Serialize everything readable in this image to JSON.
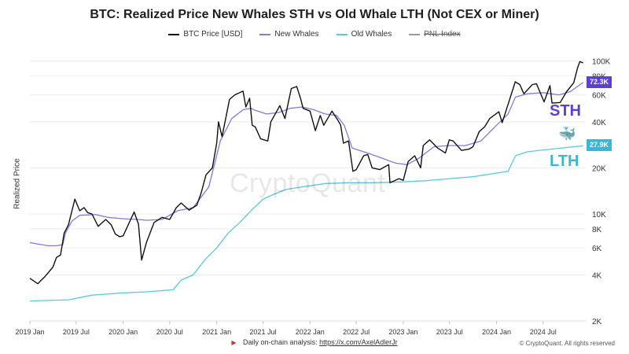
{
  "chart_data": {
    "type": "line",
    "title": "BTC: Realized Price New Whales STH vs Old Whale LTH (Not CEX or Miner)",
    "ylabel": "Realized Price",
    "yscale": "log",
    "ylim": [
      2000,
      120000
    ],
    "xlim": [
      "2019-01-01",
      "2024-12-15"
    ],
    "x_ticks": [
      {
        "date": "2019-01-01",
        "label": "2019 Jan"
      },
      {
        "date": "2019-07-01",
        "label": "2019 Jul"
      },
      {
        "date": "2020-01-01",
        "label": "2020 Jan"
      },
      {
        "date": "2020-07-01",
        "label": "2020 Jul"
      },
      {
        "date": "2021-01-01",
        "label": "2021 Jan"
      },
      {
        "date": "2021-07-01",
        "label": "2021 Jul"
      },
      {
        "date": "2022-01-01",
        "label": "2022 Jan"
      },
      {
        "date": "2022-07-01",
        "label": "2022 Jul"
      },
      {
        "date": "2023-01-01",
        "label": "2023 Jan"
      },
      {
        "date": "2023-07-01",
        "label": "2023 Jul"
      },
      {
        "date": "2024-01-01",
        "label": "2024 Jan"
      },
      {
        "date": "2024-07-01",
        "label": "2024 Jul"
      }
    ],
    "y_ticks": [
      {
        "value": 2000,
        "label": "2K"
      },
      {
        "value": 4000,
        "label": "4K"
      },
      {
        "value": 6000,
        "label": "6K"
      },
      {
        "value": 8000,
        "label": "8K"
      },
      {
        "value": 10000,
        "label": "10K"
      },
      {
        "value": 20000,
        "label": "20K"
      },
      {
        "value": 40000,
        "label": "40K"
      },
      {
        "value": 60000,
        "label": "60K"
      },
      {
        "value": 80000,
        "label": "80K"
      },
      {
        "value": 100000,
        "label": "100K"
      }
    ],
    "legend": [
      {
        "name": "BTC Price [USD]",
        "color": "#111111",
        "strike": false
      },
      {
        "name": "New Whales",
        "color": "#8877dd",
        "strike": false
      },
      {
        "name": "Old Whales",
        "color": "#5bc8dc",
        "strike": false
      },
      {
        "name": "PNL Index",
        "color": "#999999",
        "strike": true
      }
    ],
    "series": [
      {
        "name": "BTC Price [USD]",
        "color": "#111111",
        "points": [
          [
            "2019-01-01",
            3800
          ],
          [
            "2019-02-01",
            3500
          ],
          [
            "2019-02-15",
            3700
          ],
          [
            "2019-03-01",
            3900
          ],
          [
            "2019-04-01",
            4500
          ],
          [
            "2019-04-15",
            5200
          ],
          [
            "2019-05-01",
            5400
          ],
          [
            "2019-05-15",
            7500
          ],
          [
            "2019-06-01",
            8500
          ],
          [
            "2019-06-26",
            12500
          ],
          [
            "2019-07-15",
            10500
          ],
          [
            "2019-08-01",
            11000
          ],
          [
            "2019-08-15",
            10200
          ],
          [
            "2019-09-01",
            10000
          ],
          [
            "2019-09-25",
            8300
          ],
          [
            "2019-10-25",
            9200
          ],
          [
            "2019-11-15",
            8500
          ],
          [
            "2019-12-01",
            7400
          ],
          [
            "2019-12-18",
            7100
          ],
          [
            "2020-01-01",
            7200
          ],
          [
            "2020-02-13",
            10300
          ],
          [
            "2020-03-01",
            8600
          ],
          [
            "2020-03-13",
            5000
          ],
          [
            "2020-04-01",
            6500
          ],
          [
            "2020-05-01",
            8800
          ],
          [
            "2020-06-01",
            9500
          ],
          [
            "2020-07-01",
            9200
          ],
          [
            "2020-07-27",
            11000
          ],
          [
            "2020-08-15",
            11800
          ],
          [
            "2020-09-15",
            10600
          ],
          [
            "2020-10-15",
            11400
          ],
          [
            "2020-11-01",
            13700
          ],
          [
            "2020-11-20",
            18000
          ],
          [
            "2020-12-15",
            20000
          ],
          [
            "2021-01-01",
            29000
          ],
          [
            "2021-01-08",
            40000
          ],
          [
            "2021-01-22",
            32000
          ],
          [
            "2021-02-20",
            56000
          ],
          [
            "2021-03-13",
            60000
          ],
          [
            "2021-04-14",
            63500
          ],
          [
            "2021-04-25",
            50000
          ],
          [
            "2021-05-10",
            57000
          ],
          [
            "2021-05-20",
            38000
          ],
          [
            "2021-06-01",
            37000
          ],
          [
            "2021-06-22",
            31000
          ],
          [
            "2021-07-20",
            30000
          ],
          [
            "2021-08-01",
            40000
          ],
          [
            "2021-09-05",
            51000
          ],
          [
            "2021-09-25",
            42000
          ],
          [
            "2021-10-20",
            66000
          ],
          [
            "2021-11-10",
            68000
          ],
          [
            "2021-11-25",
            57000
          ],
          [
            "2021-12-05",
            49000
          ],
          [
            "2022-01-01",
            47000
          ],
          [
            "2022-01-22",
            35000
          ],
          [
            "2022-02-10",
            44000
          ],
          [
            "2022-02-24",
            38000
          ],
          [
            "2022-03-28",
            47000
          ],
          [
            "2022-04-20",
            41000
          ],
          [
            "2022-05-01",
            38000
          ],
          [
            "2022-05-12",
            29000
          ],
          [
            "2022-06-01",
            30000
          ],
          [
            "2022-06-18",
            19000
          ],
          [
            "2022-07-01",
            19500
          ],
          [
            "2022-07-30",
            24000
          ],
          [
            "2022-08-15",
            24500
          ],
          [
            "2022-09-01",
            20000
          ],
          [
            "2022-10-01",
            19500
          ],
          [
            "2022-11-05",
            21000
          ],
          [
            "2022-11-10",
            16000
          ],
          [
            "2022-12-15",
            17000
          ],
          [
            "2023-01-01",
            16600
          ],
          [
            "2023-01-20",
            22000
          ],
          [
            "2023-02-15",
            24000
          ],
          [
            "2023-03-10",
            20000
          ],
          [
            "2023-03-20",
            28000
          ],
          [
            "2023-04-14",
            30500
          ],
          [
            "2023-05-15",
            27000
          ],
          [
            "2023-06-15",
            25000
          ],
          [
            "2023-06-30",
            30500
          ],
          [
            "2023-07-15",
            30000
          ],
          [
            "2023-08-17",
            26000
          ],
          [
            "2023-09-15",
            26500
          ],
          [
            "2023-10-01",
            27500
          ],
          [
            "2023-10-25",
            34500
          ],
          [
            "2023-11-15",
            37000
          ],
          [
            "2023-12-05",
            42000
          ],
          [
            "2024-01-10",
            46500
          ],
          [
            "2024-01-23",
            39500
          ],
          [
            "2024-02-15",
            52000
          ],
          [
            "2024-03-14",
            73000
          ],
          [
            "2024-04-01",
            70000
          ],
          [
            "2024-04-17",
            61000
          ],
          [
            "2024-05-20",
            70000
          ],
          [
            "2024-06-05",
            71000
          ],
          [
            "2024-07-05",
            54000
          ],
          [
            "2024-07-28",
            69000
          ],
          [
            "2024-08-05",
            53000
          ],
          [
            "2024-09-06",
            53500
          ],
          [
            "2024-10-01",
            63000
          ],
          [
            "2024-10-29",
            72000
          ],
          [
            "2024-11-13",
            90000
          ],
          [
            "2024-11-22",
            99000
          ],
          [
            "2024-12-05",
            97000
          ]
        ]
      },
      {
        "name": "New Whales",
        "color": "#8877dd",
        "points": [
          [
            "2019-01-01",
            6500
          ],
          [
            "2019-02-15",
            6300
          ],
          [
            "2019-03-15",
            6200
          ],
          [
            "2019-04-15",
            6200
          ],
          [
            "2019-05-10",
            6300
          ],
          [
            "2019-05-20",
            7500
          ],
          [
            "2019-06-15",
            9000
          ],
          [
            "2019-07-15",
            9800
          ],
          [
            "2019-09-15",
            9900
          ],
          [
            "2019-11-01",
            9500
          ],
          [
            "2020-01-01",
            9300
          ],
          [
            "2020-03-01",
            9200
          ],
          [
            "2020-04-01",
            9100
          ],
          [
            "2020-06-01",
            9200
          ],
          [
            "2020-08-01",
            10500
          ],
          [
            "2020-10-01",
            11000
          ],
          [
            "2020-12-01",
            15000
          ],
          [
            "2021-01-15",
            30000
          ],
          [
            "2021-03-01",
            42000
          ],
          [
            "2021-04-15",
            48000
          ],
          [
            "2021-05-15",
            49000
          ],
          [
            "2021-06-01",
            47500
          ],
          [
            "2021-07-15",
            45000
          ],
          [
            "2021-09-01",
            46000
          ],
          [
            "2021-10-15",
            49000
          ],
          [
            "2021-12-01",
            50000
          ],
          [
            "2022-01-15",
            48000
          ],
          [
            "2022-03-01",
            45000
          ],
          [
            "2022-04-15",
            44000
          ],
          [
            "2022-05-15",
            38000
          ],
          [
            "2022-06-15",
            27000
          ],
          [
            "2022-08-15",
            25000
          ],
          [
            "2022-10-15",
            23000
          ],
          [
            "2022-12-01",
            21500
          ],
          [
            "2023-01-15",
            21000
          ],
          [
            "2023-03-01",
            23000
          ],
          [
            "2023-05-01",
            27500
          ],
          [
            "2023-07-01",
            28000
          ],
          [
            "2023-09-01",
            28000
          ],
          [
            "2023-11-01",
            30000
          ],
          [
            "2024-01-01",
            38000
          ],
          [
            "2024-02-15",
            45000
          ],
          [
            "2024-03-15",
            58000
          ],
          [
            "2024-05-01",
            61000
          ],
          [
            "2024-07-01",
            62000
          ],
          [
            "2024-09-01",
            60000
          ],
          [
            "2024-10-15",
            63000
          ],
          [
            "2024-12-05",
            72300
          ]
        ]
      },
      {
        "name": "Old Whales",
        "color": "#5bc8dc",
        "points": [
          [
            "2019-01-01",
            2700
          ],
          [
            "2019-06-01",
            2750
          ],
          [
            "2019-09-01",
            2950
          ],
          [
            "2020-01-01",
            3050
          ],
          [
            "2020-04-01",
            3100
          ],
          [
            "2020-07-15",
            3200
          ],
          [
            "2020-08-15",
            3700
          ],
          [
            "2020-10-01",
            4000
          ],
          [
            "2020-11-15",
            5000
          ],
          [
            "2021-01-01",
            6000
          ],
          [
            "2021-02-15",
            7500
          ],
          [
            "2021-04-01",
            8800
          ],
          [
            "2021-05-15",
            10500
          ],
          [
            "2021-07-01",
            12500
          ],
          [
            "2021-08-15",
            13500
          ],
          [
            "2021-10-01",
            14500
          ],
          [
            "2021-12-01",
            15000
          ],
          [
            "2022-03-01",
            15800
          ],
          [
            "2022-06-01",
            16000
          ],
          [
            "2022-09-01",
            16000
          ],
          [
            "2023-01-01",
            16200
          ],
          [
            "2023-04-01",
            16500
          ],
          [
            "2023-07-01",
            17000
          ],
          [
            "2023-10-01",
            17500
          ],
          [
            "2024-01-01",
            18500
          ],
          [
            "2024-02-15",
            19000
          ],
          [
            "2024-03-15",
            24000
          ],
          [
            "2024-05-01",
            25500
          ],
          [
            "2024-08-01",
            26500
          ],
          [
            "2024-12-05",
            27900
          ]
        ]
      }
    ],
    "value_labels": [
      {
        "series": "New Whales",
        "text": "72.3K",
        "value": 72300,
        "color": "#5d3fd3"
      },
      {
        "series": "Old Whales",
        "text": "27.9K",
        "value": 27900,
        "color": "#3bb6d3"
      }
    ],
    "annotations": [
      {
        "text": "STH",
        "color": "#5d3fd3"
      },
      {
        "text": "LTH",
        "color": "#3bb6d3"
      }
    ],
    "icons": [
      "whale-icon"
    ],
    "watermark": "CryptoQuant",
    "footer": {
      "note_prefix": "Daily on-chain analysis: ",
      "note_link": "https://x.com/AxelAdlerJr",
      "copyright": "© CryptoQuant. All rights reserved"
    }
  }
}
